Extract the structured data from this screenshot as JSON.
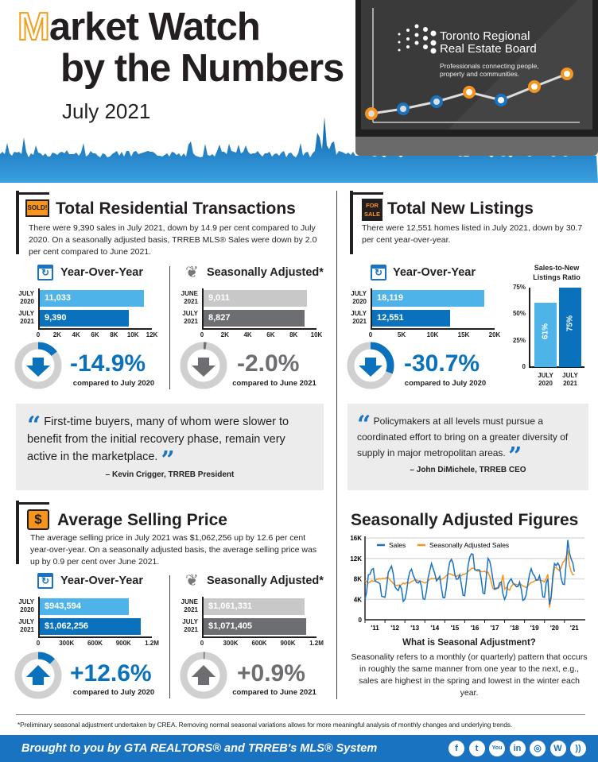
{
  "header": {
    "title_m": "M",
    "title_rest": "arket Watch",
    "title_line2": "by the Numbers",
    "period": "July 2021",
    "brand_name_1": "Toronto Regional",
    "brand_name_2": "Real Estate Board",
    "brand_tagline_1": "Professionals connecting people,",
    "brand_tagline_2": "property and communities."
  },
  "transactions": {
    "title": "Total Residential Transactions",
    "sign_text": "SOLD!",
    "description": "There were 9,390 sales in July 2021, down by 14.9 per cent compared to July 2020. On a seasonally adjusted basis, TRREB MLS® Sales were down by 2.0 per cent compared to June 2021.",
    "yoy": {
      "title": "Year-Over-Year",
      "max": 12000,
      "ticks": [
        "0",
        "2K",
        "4K",
        "6K",
        "8K",
        "10K",
        "12K"
      ],
      "bars": [
        {
          "label1": "JULY",
          "label2": "2020",
          "value": 11033,
          "text": "11,033"
        },
        {
          "label1": "JULY",
          "label2": "2021",
          "value": 9390,
          "text": "9,390"
        }
      ],
      "change": "-14.9%",
      "change_pct": 14.9,
      "direction": "down",
      "compare": "compared to July 2020"
    },
    "sa": {
      "title": "Seasonally Adjusted*",
      "max": 10000,
      "ticks": [
        "0",
        "2K",
        "4K",
        "6K",
        "8K",
        "10K"
      ],
      "bars": [
        {
          "label1": "JUNE",
          "label2": "2021",
          "value": 9011,
          "text": "9,011"
        },
        {
          "label1": "JULY",
          "label2": "2021",
          "value": 8827,
          "text": "8,827"
        }
      ],
      "change": "-2.0%",
      "change_pct": 2.0,
      "direction": "down",
      "compare": "compared to June 2021"
    }
  },
  "listings": {
    "title": "Total New Listings",
    "sign_text_1": "FOR",
    "sign_text_2": "SALE",
    "description": "There were 12,551 homes listed in July 2021, down by 30.7 per cent year-over-year.",
    "yoy": {
      "title": "Year-Over-Year",
      "max": 20000,
      "ticks": [
        "0",
        "5K",
        "10K",
        "15K",
        "20K"
      ],
      "bars": [
        {
          "label1": "JULY",
          "label2": "2020",
          "value": 18119,
          "text": "18,119"
        },
        {
          "label1": "JULY",
          "label2": "2021",
          "value": 12551,
          "text": "12,551"
        }
      ],
      "change": "-30.7%",
      "change_pct": 30.7,
      "direction": "down",
      "compare": "compared to July 2020"
    },
    "ratio": {
      "title_1": "Sales-to-New",
      "title_2": "Listings Ratio",
      "max": 75,
      "ticks": [
        "0",
        "25%",
        "50%",
        "75%"
      ],
      "bars": [
        {
          "label1": "JULY",
          "label2": "2020",
          "value": 61,
          "text": "61%"
        },
        {
          "label1": "JULY",
          "label2": "2021",
          "value": 75,
          "text": "75%"
        }
      ]
    }
  },
  "quotes": [
    {
      "text": "First-time buyers, many of whom were slower to benefit from the initial recovery phase, remain very active in the marketplace.",
      "author": "– Kevin Crigger, TRREB President"
    },
    {
      "text": "Policymakers at all levels must pursue a coordinated effort to bring on a greater diversity of supply in major metropolitan areas.",
      "author": "– John DiMichele, TRREB CEO"
    }
  ],
  "price": {
    "title": "Average Selling Price",
    "sign_text": "$",
    "description": "The average selling price in July 2021 was $1,062,256 up by 12.6 per cent year-over-year. On a seasonally adjusted basis, the average selling price was up by 0.9 per cent over June 2021.",
    "yoy": {
      "title": "Year-Over-Year",
      "max": 1200000,
      "ticks": [
        "0",
        "300K",
        "600K",
        "900K",
        "1.2M"
      ],
      "bars": [
        {
          "label1": "JULY",
          "label2": "2020",
          "value": 943594,
          "text": "$943,594"
        },
        {
          "label1": "JULY",
          "label2": "2021",
          "value": 1062256,
          "text": "$1,062,256"
        }
      ],
      "change": "+12.6%",
      "change_pct": 12.6,
      "direction": "up",
      "compare": "compared to July 2020"
    },
    "sa": {
      "title": "Seasonally Adjusted*",
      "max": 1200000,
      "ticks": [
        "0",
        "300K",
        "600K",
        "900K",
        "1.2M"
      ],
      "bars": [
        {
          "label1": "JUNE",
          "label2": "2021",
          "value": 1061331,
          "text": "$1,061,331"
        },
        {
          "label1": "JULY",
          "label2": "2021",
          "value": 1071405,
          "text": "$1,071,405"
        }
      ],
      "change": "+0.9%",
      "change_pct": 0.9,
      "direction": "up",
      "compare": "compared to June 2021"
    }
  },
  "seasonal": {
    "title": "Seasonally Adjusted Figures",
    "explain_title": "What is Seasonal Adjustment?",
    "explain_text": "Seasonality refers to a monthly (or quarterly) pattern that occurs in roughly the same manner from one year to the next, e.g., sales are highest in the spring and lowest in the winter each year."
  },
  "chart_data": {
    "type": "line",
    "title": "Seasonally Adjusted Figures",
    "x_start": "2011-01",
    "x_end": "2021-07",
    "x_unit": "month",
    "x_ticks": [
      "'11",
      "'12",
      "'13",
      "'14",
      "'15",
      "'16",
      "'17",
      "'18",
      "'19",
      "'20",
      "'21"
    ],
    "y_ticks": [
      "0",
      "4K",
      "8K",
      "12K",
      "16K"
    ],
    "ylim": [
      0,
      16000
    ],
    "legend": "top-left",
    "grid": true,
    "series": [
      {
        "name": "Sales",
        "color": "#1a73c0",
        "values": [
          4000,
          5500,
          8800,
          8900,
          9800,
          10000,
          7600,
          7400,
          7300,
          7000,
          4600,
          4500,
          4400,
          6500,
          9300,
          9900,
          10500,
          9000,
          6500,
          6000,
          5700,
          6700,
          6000,
          3600,
          4000,
          5500,
          8000,
          9400,
          9900,
          8700,
          8000,
          7300,
          7200,
          7600,
          6500,
          4100,
          4000,
          5600,
          8200,
          9600,
          11000,
          10000,
          9000,
          7600,
          8000,
          8500,
          6200,
          4300,
          4300,
          6400,
          9500,
          11300,
          11800,
          11000,
          8900,
          7900,
          8000,
          8800,
          6900,
          4800,
          4700,
          7600,
          10500,
          12200,
          12900,
          12800,
          9800,
          9700,
          9800,
          9700,
          7800,
          5200,
          5100,
          8500,
          12000,
          11500,
          10000,
          7800,
          6000,
          6200,
          6200,
          7200,
          7400,
          5000,
          4000,
          4800,
          7000,
          7600,
          8000,
          7200,
          6900,
          6500,
          6500,
          7400,
          6000,
          3800,
          4000,
          4900,
          7000,
          8900,
          10000,
          9000,
          8600,
          7700,
          7800,
          8600,
          7000,
          4500,
          4400,
          7200,
          8000,
          3000,
          4600,
          8600,
          11000,
          10600,
          11100,
          10500,
          8200,
          7000,
          6900,
          10900,
          15600,
          13100,
          11900,
          11100,
          9400
        ]
      },
      {
        "name": "Seasonally Adjusted Sales",
        "color": "#f7941d",
        "values": [
          7600,
          7500,
          7200,
          7400,
          7700,
          7500,
          7600,
          7900,
          8000,
          8000,
          8000,
          8100,
          8000,
          8300,
          8200,
          7800,
          7500,
          7100,
          6800,
          6700,
          6800,
          6600,
          6900,
          7200,
          7000,
          7300,
          7200,
          7200,
          7500,
          7600,
          7800,
          7800,
          7600,
          7500,
          7500,
          7300,
          7200,
          7300,
          7600,
          7900,
          8100,
          8000,
          8100,
          8100,
          8000,
          7800,
          7900,
          8100,
          8300,
          8600,
          9000,
          9000,
          8900,
          8700,
          8600,
          8500,
          8700,
          8700,
          8600,
          8900,
          8900,
          9100,
          9400,
          9700,
          10000,
          10100,
          10000,
          9600,
          9500,
          9600,
          9400,
          9400,
          9500,
          9200,
          9300,
          8500,
          7400,
          6100,
          5900,
          6000,
          6200,
          6500,
          7200,
          8800,
          6000,
          6300,
          6000,
          5800,
          6500,
          6900,
          7000,
          6900,
          6800,
          6800,
          6900,
          6600,
          6500,
          6300,
          6600,
          7000,
          7300,
          7400,
          7600,
          7800,
          7800,
          7700,
          7700,
          7600,
          7400,
          8000,
          8900,
          2400,
          4200,
          7900,
          10200,
          10200,
          9900,
          9600,
          10100,
          11200,
          11500,
          12200,
          13600,
          10600,
          9500,
          8800,
          8800
        ]
      }
    ]
  },
  "footnote": "*Preliminary seasonal adjustment undertaken by CREA. Removing normal seasonal variations allows for more meaningful analysis of monthly changes and underlying trends.",
  "footer": {
    "tagline": "Brought to you by GTA REALTORS® and TRREB's MLS® System",
    "social": [
      {
        "name": "facebook-icon",
        "glyph": "f"
      },
      {
        "name": "twitter-icon",
        "glyph": "t"
      },
      {
        "name": "youtube-icon",
        "glyph": "You"
      },
      {
        "name": "linkedin-icon",
        "glyph": "in"
      },
      {
        "name": "instagram-icon",
        "glyph": "◎"
      },
      {
        "name": "wordpress-icon",
        "glyph": "W"
      },
      {
        "name": "rss-icon",
        "glyph": "))"
      }
    ]
  },
  "colors": {
    "blue": "#1a73c0",
    "light_blue": "#4eb3e8",
    "gray_light": "#c8c8c8",
    "gray_dark": "#6d6e71",
    "orange": "#f7941d"
  }
}
